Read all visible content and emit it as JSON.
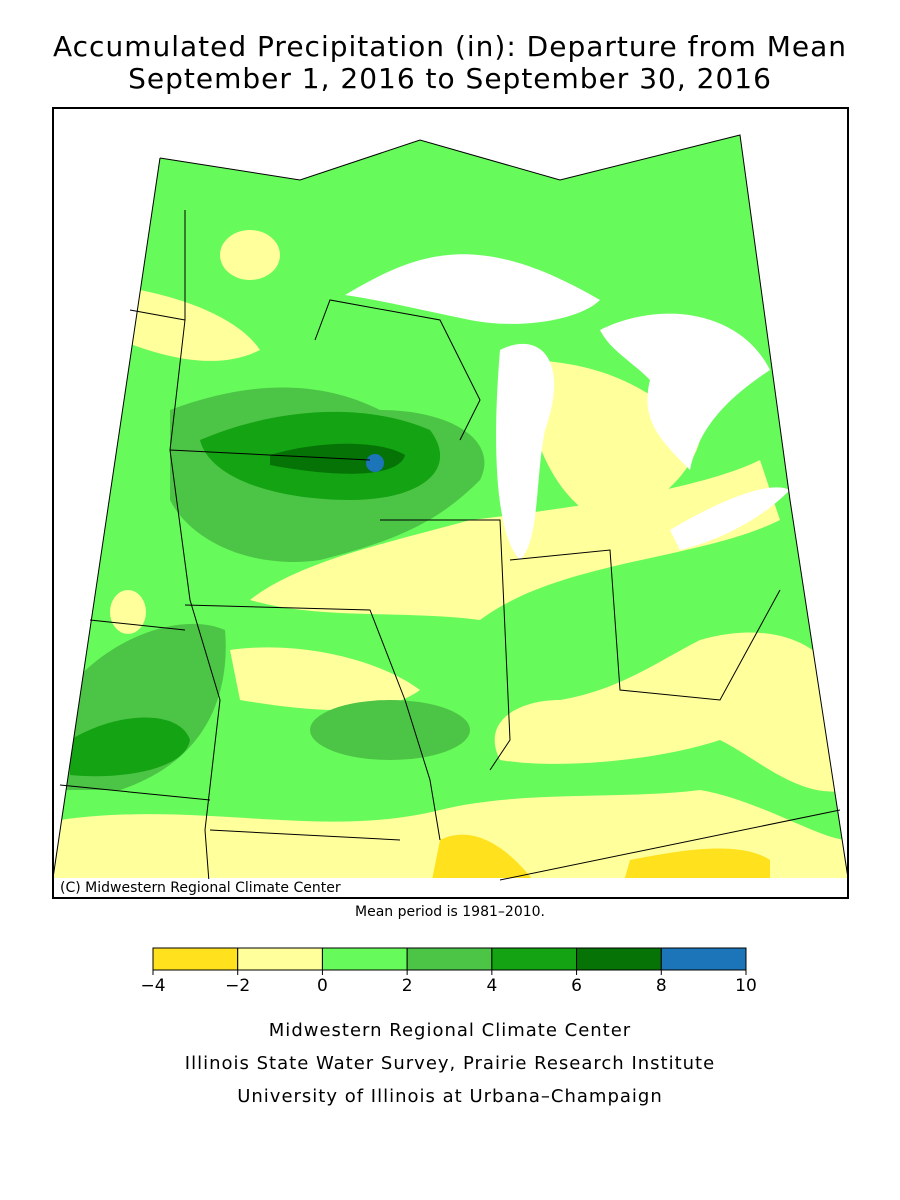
{
  "title": [
    "Accumulated Precipitation (in): Departure from Mean",
    "September 1, 2016 to September 30, 2016"
  ],
  "map": {
    "copyright": "(C) Midwestern Regional Climate Center"
  },
  "note": "Mean period is 1981–2010.",
  "legend": {
    "ticks": [
      {
        "value": -4,
        "label": "−4"
      },
      {
        "value": -2,
        "label": "−2"
      },
      0,
      2,
      4,
      6,
      8,
      10
    ],
    "colors": [
      "#ffe11e",
      "#ffff9c",
      "#66fa5a",
      "#4cc446",
      "#13a313",
      "#057305",
      "#1c75b8"
    ]
  },
  "footer": [
    "Midwestern Regional Climate Center",
    "Illinois State Water Survey, Prairie Research Institute",
    "University of Illinois at Urbana–Champaign"
  ]
}
